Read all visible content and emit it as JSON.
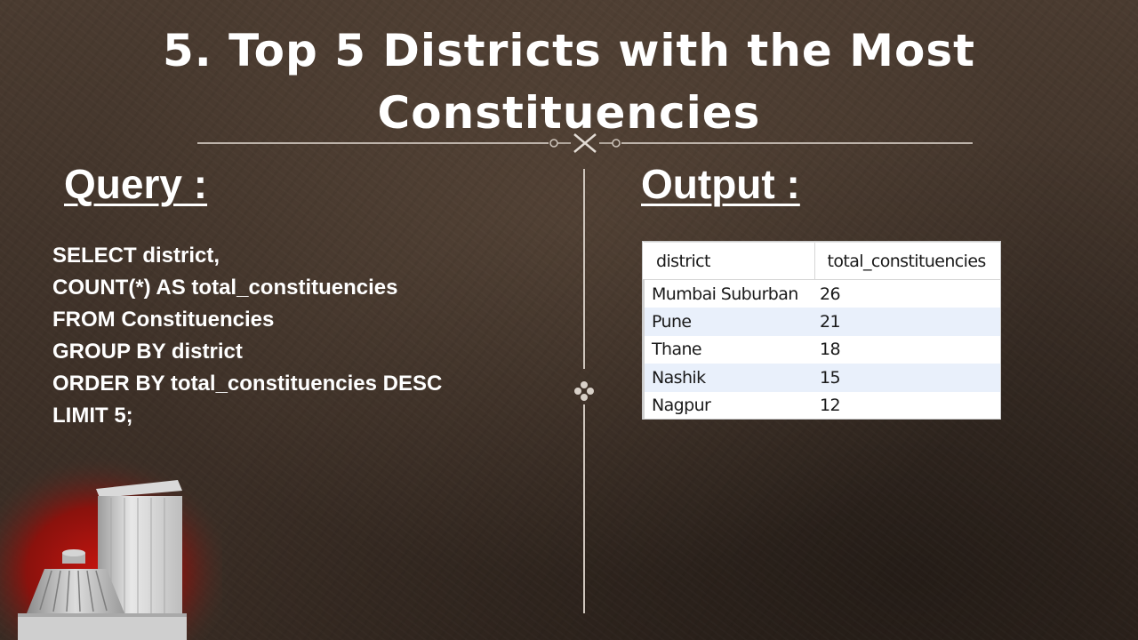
{
  "slide": {
    "title": "5.  Top 5 Districts with the Most Constituencies"
  },
  "query_section": {
    "heading": "Query :",
    "lines": [
      "SELECT district,",
      "COUNT(*) AS total_constituencies",
      "FROM Constituencies",
      "GROUP BY district",
      "ORDER BY total_constituencies DESC",
      "LIMIT 5;"
    ]
  },
  "output_section": {
    "heading": "Output :",
    "columns": [
      "district",
      "total_constituencies"
    ],
    "rows": [
      [
        "Mumbai Suburban",
        "26"
      ],
      [
        "Pune",
        "21"
      ],
      [
        "Thane",
        "18"
      ],
      [
        "Nashik",
        "15"
      ],
      [
        "Nagpur",
        "12"
      ]
    ]
  },
  "colors": {
    "background": "#3f3229",
    "text": "#ffffff",
    "ornament": "#cfc6bd",
    "row_alt": "#e9f0fb"
  }
}
